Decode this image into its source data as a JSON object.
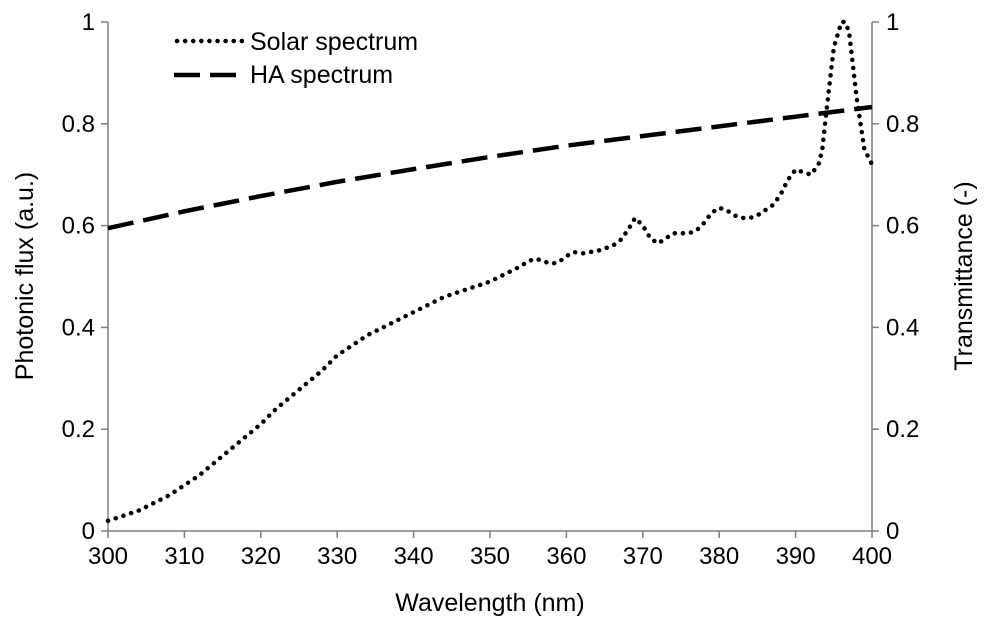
{
  "chart_data": {
    "type": "line",
    "title": "",
    "xlabel": "Wavelength (nm)",
    "ylabel_left": "Photonic flux (a.u.)",
    "ylabel_right": "Transmittance (-)",
    "xlim": [
      300,
      400
    ],
    "ylim_left": [
      0,
      1
    ],
    "ylim_right": [
      0,
      1
    ],
    "x_ticks": [
      "300",
      "310",
      "320",
      "330",
      "340",
      "350",
      "360",
      "370",
      "380",
      "390",
      "400"
    ],
    "y_ticks_left": [
      "0",
      "0.2",
      "0.4",
      "0.6",
      "0.8",
      "1"
    ],
    "y_ticks_right": [
      "0",
      "0.2",
      "0.4",
      "0.6",
      "0.8",
      "1"
    ],
    "grid": false,
    "legend_position": "top-left",
    "series": [
      {
        "name": "Solar spectrum",
        "style": "dotted",
        "axis": "left",
        "color": "#000000",
        "x": [
          300,
          302,
          304,
          306,
          308,
          310,
          312,
          314,
          316,
          318,
          320,
          322,
          324,
          326,
          328,
          330,
          332,
          334,
          336,
          338,
          340,
          342,
          344,
          346,
          348,
          350,
          352,
          354,
          355,
          356,
          357,
          358,
          359,
          360,
          361,
          362,
          363,
          364,
          366,
          367,
          368,
          369,
          370,
          371,
          372,
          373,
          374,
          376,
          377,
          378,
          379,
          380,
          381,
          382,
          383,
          384,
          385,
          386,
          387,
          388,
          389,
          390,
          391,
          392,
          393,
          393.5,
          394,
          395,
          396,
          396.5,
          397,
          398,
          399,
          400
        ],
        "values": [
          0.02,
          0.03,
          0.04,
          0.055,
          0.07,
          0.09,
          0.11,
          0.135,
          0.16,
          0.185,
          0.21,
          0.24,
          0.265,
          0.29,
          0.315,
          0.345,
          0.365,
          0.385,
          0.4,
          0.415,
          0.43,
          0.445,
          0.46,
          0.47,
          0.48,
          0.49,
          0.505,
          0.52,
          0.53,
          0.535,
          0.53,
          0.525,
          0.528,
          0.54,
          0.548,
          0.545,
          0.548,
          0.55,
          0.56,
          0.57,
          0.59,
          0.615,
          0.6,
          0.575,
          0.565,
          0.575,
          0.585,
          0.585,
          0.59,
          0.605,
          0.625,
          0.635,
          0.63,
          0.62,
          0.615,
          0.615,
          0.62,
          0.63,
          0.64,
          0.66,
          0.69,
          0.71,
          0.705,
          0.7,
          0.72,
          0.75,
          0.82,
          0.95,
          1.0,
          1.0,
          0.98,
          0.85,
          0.75,
          0.72
        ]
      },
      {
        "name": "HA spectrum",
        "style": "dashed",
        "axis": "right",
        "color": "#000000",
        "x": [
          300,
          310,
          320,
          330,
          340,
          350,
          360,
          370,
          380,
          390,
          400
        ],
        "values": [
          0.595,
          0.628,
          0.658,
          0.686,
          0.711,
          0.735,
          0.757,
          0.776,
          0.795,
          0.814,
          0.833
        ]
      }
    ]
  }
}
